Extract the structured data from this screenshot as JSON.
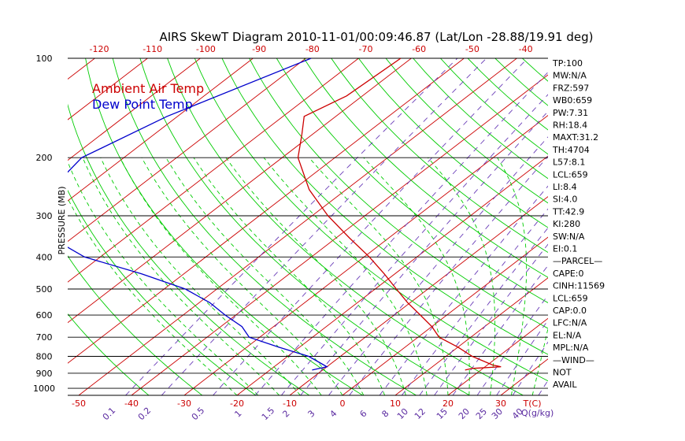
{
  "title": "AIRS SkewT Diagram 2010-11-01/00:09:46.87 (Lat/Lon -28.88/19.91 deg)",
  "colors": {
    "temp": "#cc0000",
    "dew": "#0000cc",
    "isotherm": "#cc0000",
    "dry_adiabat": "#00cc00",
    "moist_adiabat": "#00cc00",
    "mixing_ratio": "#6a3db8",
    "isobar": "#000000"
  },
  "chart_data": {
    "type": "skew-t",
    "ylabel": "PRESSURE (MB)",
    "xlabel": "T(C)",
    "mixing_ratio_label": "Q(g/kg)",
    "pressure_ticks": [
      "100",
      "200",
      "300",
      "400",
      "500",
      "600",
      "700",
      "800",
      "900",
      "1000"
    ],
    "pressure_values": [
      100,
      200,
      300,
      400,
      500,
      600,
      700,
      800,
      900,
      1000
    ],
    "bottom_temp_ticks": [
      "-50",
      "-40",
      "-30",
      "-20",
      "-10",
      "0",
      "10",
      "20",
      "30"
    ],
    "bottom_temp_values": [
      -50,
      -40,
      -30,
      -20,
      -10,
      0,
      10,
      20,
      30
    ],
    "top_temp_ticks": [
      "-120",
      "-110",
      "-100",
      "-90",
      "-80",
      "-70",
      "-60",
      "-50",
      "-40"
    ],
    "top_temp_values": [
      -120,
      -110,
      -100,
      -90,
      -80,
      -70,
      -60,
      -50,
      -40
    ],
    "mixing_ratio_ticks": [
      "0.1",
      "0.2",
      "0.5",
      "1",
      "1.5",
      "2",
      "3",
      "4",
      "6",
      "8",
      "10",
      "12",
      "15",
      "20",
      "25",
      "30",
      "40"
    ],
    "legend": [
      "Ambient Air Temp",
      "Dew Point Temp"
    ],
    "series": [
      {
        "name": "Ambient Air Temp",
        "points": [
          [
            100,
            -72
          ],
          [
            130,
            -73
          ],
          [
            150,
            -76
          ],
          [
            170,
            -72
          ],
          [
            200,
            -67
          ],
          [
            250,
            -57
          ],
          [
            300,
            -47
          ],
          [
            350,
            -37.5
          ],
          [
            400,
            -29
          ],
          [
            450,
            -22
          ],
          [
            500,
            -16
          ],
          [
            550,
            -10.5
          ],
          [
            600,
            -5
          ],
          [
            650,
            0
          ],
          [
            700,
            4
          ],
          [
            750,
            10
          ],
          [
            800,
            15
          ],
          [
            850,
            21
          ],
          [
            860,
            23
          ],
          [
            870,
            18
          ],
          [
            880,
            17
          ]
        ]
      },
      {
        "name": "Dew Point Temp",
        "points": [
          [
            100,
            -89
          ],
          [
            150,
            -102
          ],
          [
            200,
            -108
          ],
          [
            250,
            -106
          ],
          [
            300,
            -104
          ],
          [
            350,
            -94
          ],
          [
            400,
            -83
          ],
          [
            450,
            -68
          ],
          [
            500,
            -56
          ],
          [
            550,
            -48
          ],
          [
            600,
            -42
          ],
          [
            650,
            -36
          ],
          [
            700,
            -32
          ],
          [
            750,
            -24
          ],
          [
            800,
            -16
          ],
          [
            850,
            -11
          ],
          [
            860,
            -10
          ],
          [
            870,
            -11
          ],
          [
            880,
            -12
          ]
        ]
      }
    ]
  },
  "indices": [
    "TP:100",
    "MW:N/A",
    "FRZ:597",
    "WB0:659",
    "PW:7.31",
    "RH:18.4",
    "MAXT:31.2",
    "TH:4704",
    "L57:8.1",
    "LCL:659",
    "LI:8.4",
    "SI:4.0",
    "TT:42.9",
    "KI:280",
    "SW:N/A",
    "EI:0.1",
    "—PARCEL—",
    "CAPE:0",
    "CINH:11569",
    "LCL:659",
    "CAP:0.0",
    "LFC:N/A",
    "EL:N/A",
    "MPL:N/A",
    "—WIND—",
    "NOT",
    "AVAIL"
  ]
}
